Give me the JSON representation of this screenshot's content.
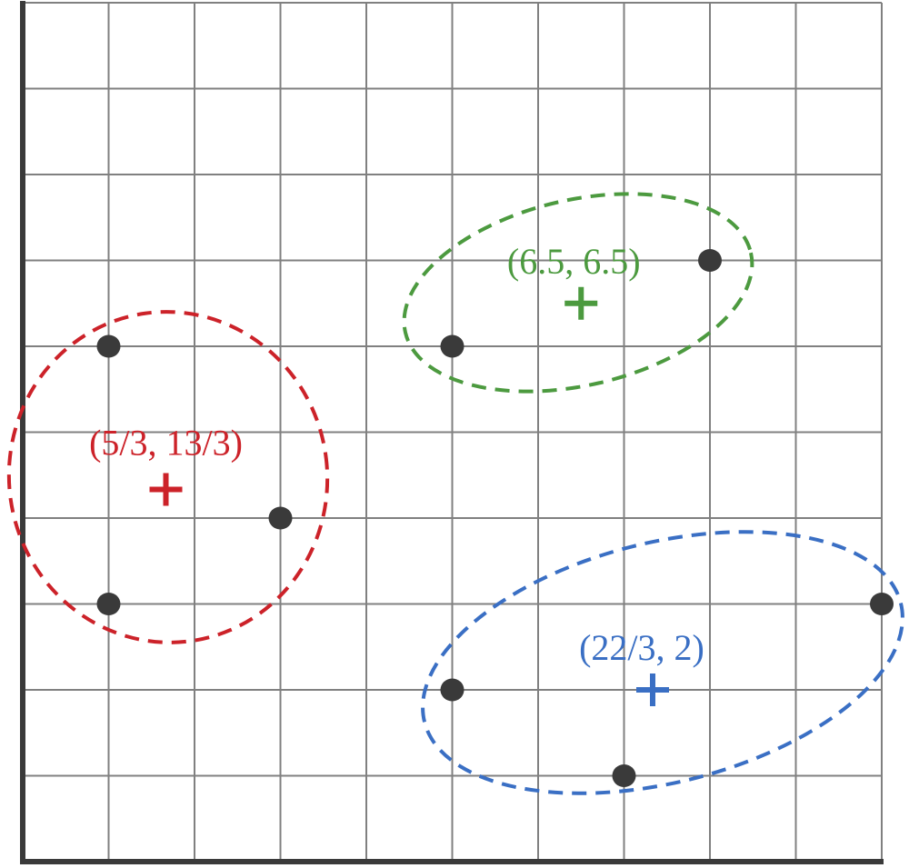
{
  "chart_data": {
    "type": "scatter",
    "title": "",
    "xlabel": "",
    "ylabel": "",
    "xlim": [
      0,
      10
    ],
    "ylim": [
      0,
      10
    ],
    "grid": true,
    "points": [
      {
        "x": 1,
        "y": 6
      },
      {
        "x": 1,
        "y": 3
      },
      {
        "x": 3,
        "y": 4
      },
      {
        "x": 5,
        "y": 6
      },
      {
        "x": 8,
        "y": 7
      },
      {
        "x": 5,
        "y": 2
      },
      {
        "x": 7,
        "y": 1
      },
      {
        "x": 10,
        "y": 3
      }
    ],
    "clusters": [
      {
        "color": "#cc2229",
        "point_indices": [
          0,
          1,
          2
        ],
        "centroid": {
          "x": 1.6667,
          "y": 4.3333
        },
        "centroid_label": "(5/3, 13/3)"
      },
      {
        "color": "#4c9a3f",
        "point_indices": [
          3,
          4
        ],
        "centroid": {
          "x": 6.5,
          "y": 6.5
        },
        "centroid_label": "(6.5, 6.5)"
      },
      {
        "color": "#3a6fc4",
        "point_indices": [
          5,
          6,
          7
        ],
        "centroid": {
          "x": 7.3333,
          "y": 2
        },
        "centroid_label": "(22/3, 2)"
      }
    ]
  }
}
